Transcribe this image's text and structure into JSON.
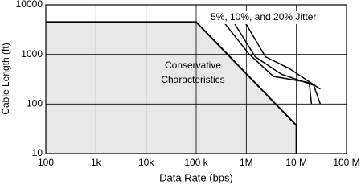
{
  "chart_data": {
    "type": "line",
    "x_label": "Data Rate (bps)",
    "y_label": "Cable Length (ft)",
    "xscale": "log",
    "yscale": "log",
    "grid": true,
    "xlim": [
      100,
      100000000
    ],
    "ylim": [
      10,
      10000
    ],
    "xticks": [
      100,
      {
        "value": 1000,
        "label": "1k"
      },
      {
        "value": 10000,
        "label": "10k"
      },
      {
        "value": 100000,
        "label": "100 k"
      },
      {
        "value": 1000000,
        "label": "1M"
      },
      {
        "value": 10000000,
        "label": "10 M"
      },
      {
        "value": 100000000,
        "label": "100 M"
      }
    ],
    "yticks": [
      10,
      100,
      1000,
      10000
    ],
    "area": {
      "color": "#e8e8e8",
      "x": [
        100,
        100000,
        10000000,
        10000000
      ],
      "values": [
        4500,
        4500,
        37,
        10
      ]
    },
    "series": [
      {
        "color": "#000000",
        "x": [
          380000,
          1150000,
          3500000,
          18000000,
          20000000
        ],
        "values": [
          4100,
          1000,
          360,
          270,
          100
        ]
      },
      {
        "color": "#000000",
        "x": [
          590000,
          1500000,
          5000000,
          22000000,
          30000000
        ],
        "values": [
          4100,
          900,
          400,
          240,
          100
        ]
      },
      {
        "color": "#000000",
        "x": [
          950000,
          2400000,
          7200000,
          30000000
        ],
        "values": [
          4400,
          900,
          520,
          200
        ]
      }
    ],
    "annotations": [
      "5%, 10%, and 20% Jitter",
      "Conservative",
      "Characteristics"
    ]
  }
}
